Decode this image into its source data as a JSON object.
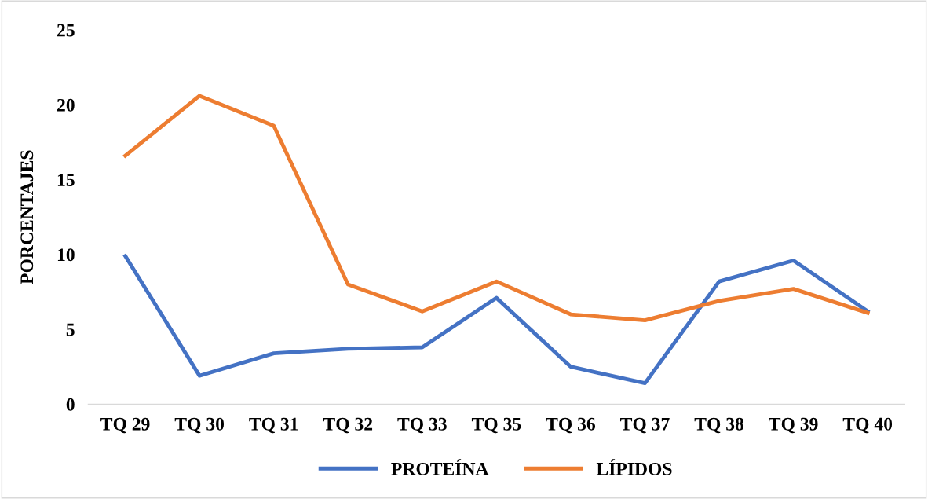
{
  "chart_data": {
    "type": "line",
    "ylabel": "PORCENTAJES",
    "categories": [
      "TQ 29",
      "TQ 30",
      "TQ 31",
      "TQ 32",
      "TQ 33",
      "TQ 35",
      "TQ 36",
      "TQ 37",
      "TQ 38",
      "TQ 39",
      "TQ 40"
    ],
    "series": [
      {
        "name": "PROTEÍNA",
        "color": "#4472c4",
        "values": [
          9.9,
          1.9,
          3.4,
          3.7,
          3.8,
          7.1,
          2.5,
          1.4,
          8.2,
          9.6,
          6.2
        ]
      },
      {
        "name": "LÍPIDOS",
        "color": "#ed7d31",
        "values": [
          16.6,
          20.6,
          18.6,
          8.0,
          6.2,
          8.2,
          6.0,
          5.6,
          6.9,
          7.7,
          6.1
        ]
      }
    ],
    "ylim": [
      0,
      25
    ],
    "yticks": [
      0,
      5,
      10,
      15,
      20,
      25
    ],
    "grid": false,
    "legend": "bottom",
    "marker": "none",
    "line_style": "solid"
  }
}
